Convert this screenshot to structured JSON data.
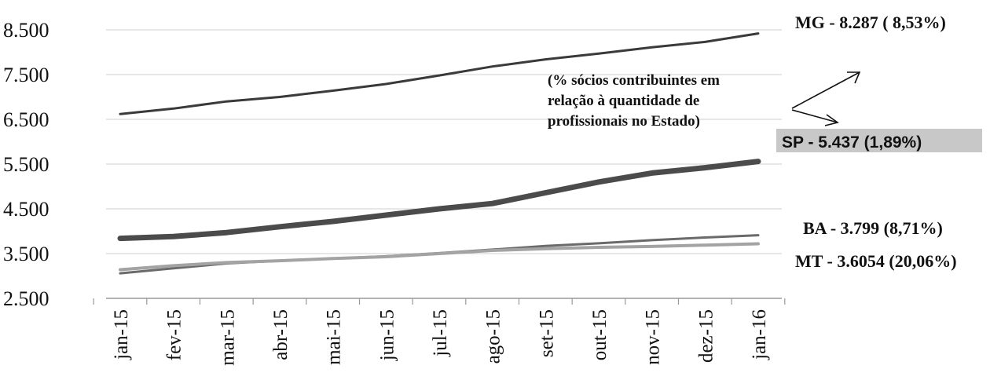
{
  "chart_data": {
    "type": "line",
    "categories": [
      "jan-15",
      "fev-15",
      "mar-15",
      "abr-15",
      "mai-15",
      "jun-15",
      "jul-15",
      "ago-15",
      "set-15",
      "out-15",
      "nov-15",
      "dez-15",
      "jan-16"
    ],
    "y_ticks": [
      "8.500",
      "7.500",
      "6.500",
      "5.500",
      "4.500",
      "3.500",
      "2.500"
    ],
    "ylim": [
      2500,
      9000
    ],
    "grid": true,
    "series": [
      {
        "key": "mg",
        "label": "MG - 8.287 ( 8,53%)",
        "color": "#3a3a3a",
        "width": 3,
        "values": [
          6620,
          6740,
          6900,
          7000,
          7140,
          7290,
          7480,
          7680,
          7840,
          7970,
          8110,
          8230,
          8420
        ]
      },
      {
        "key": "sp",
        "label": "SP - 5.437 (1,89%)",
        "color": "#4b4b4b",
        "width": 7,
        "values": [
          3840,
          3880,
          3970,
          4100,
          4220,
          4360,
          4500,
          4620,
          4860,
          5100,
          5300,
          5420,
          5560
        ]
      },
      {
        "key": "ba",
        "label": "BA - 3.799 (8,71%)",
        "color": "#6a6a6a",
        "width": 3,
        "values": [
          3060,
          3170,
          3280,
          3340,
          3390,
          3440,
          3510,
          3590,
          3670,
          3730,
          3800,
          3860,
          3910
        ]
      },
      {
        "key": "mt",
        "label": "MT - 3.6054 (20,06%)",
        "color": "#a3a3a3",
        "width": 4,
        "values": [
          3140,
          3230,
          3300,
          3340,
          3390,
          3430,
          3500,
          3570,
          3610,
          3640,
          3660,
          3690,
          3720
        ]
      }
    ],
    "annotation": {
      "lines": [
        "(% sócios contribuintes em",
        "relação à quantidade de",
        "profissionais no Estado)"
      ]
    },
    "sp_label_highlight": "#c8c8c8"
  }
}
